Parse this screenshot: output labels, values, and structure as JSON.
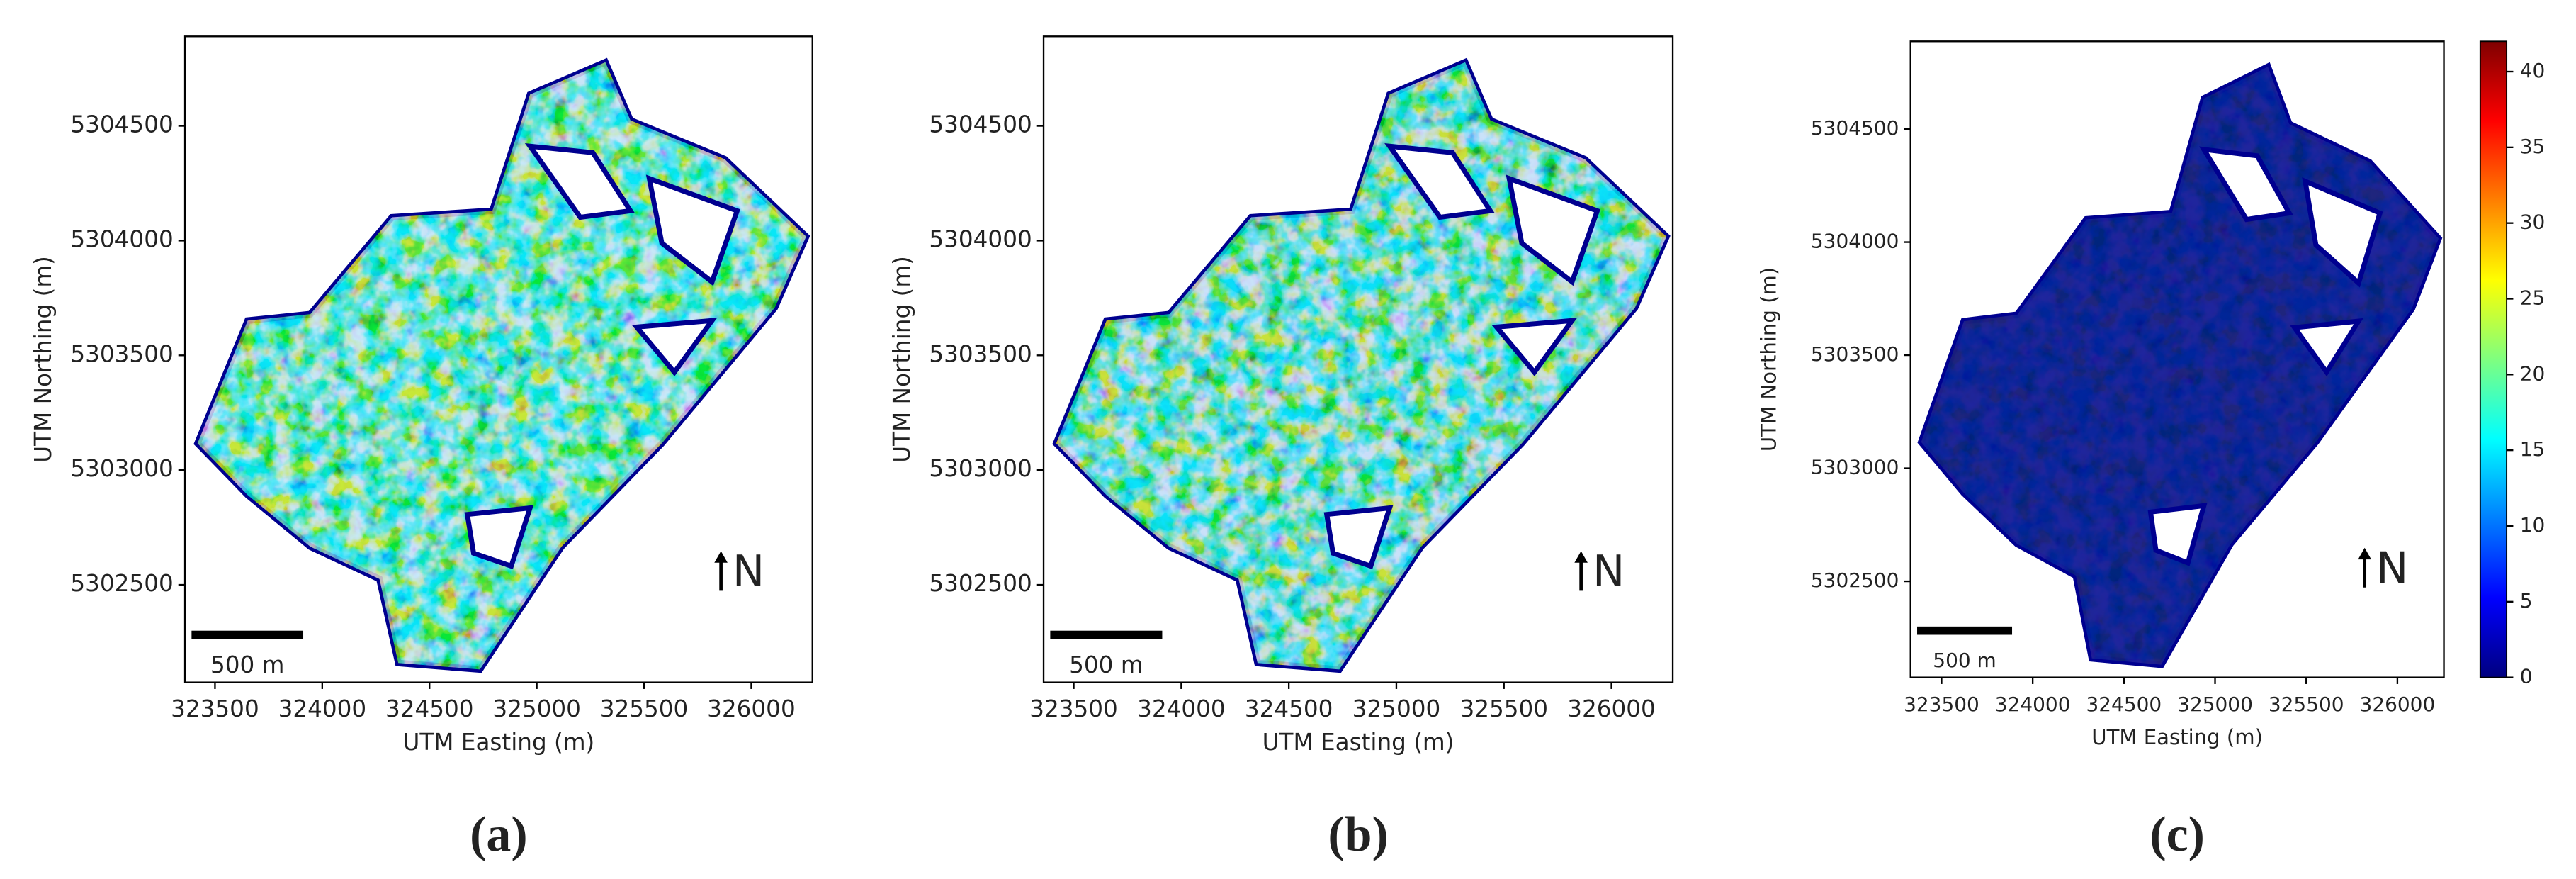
{
  "chart_data": [
    {
      "type": "map",
      "panel_label": "(a)",
      "xlabel": "UTM Easting (m)",
      "ylabel": "UTM Northing (m)",
      "xlim": [
        323360,
        326285
      ],
      "ylim": [
        5302075,
        5304890
      ],
      "xticks": [
        323500,
        324000,
        324500,
        325000,
        325500,
        326000
      ],
      "yticks": [
        5302500,
        5303000,
        5303500,
        5304000,
        5304500
      ],
      "scale_bar": "500 m",
      "north": "N",
      "color": "#20a8e0"
    },
    {
      "type": "map",
      "panel_label": "(b)",
      "xlabel": "UTM Easting (m)",
      "ylabel": "UTM Northing (m)",
      "xlim": [
        323360,
        326285
      ],
      "ylim": [
        5302075,
        5304890
      ],
      "xticks": [
        323500,
        324000,
        324500,
        325000,
        325500,
        326000
      ],
      "yticks": [
        5302500,
        5303000,
        5303500,
        5304000,
        5304500
      ],
      "scale_bar": "500 m",
      "north": "N",
      "color": "#2a90e8"
    },
    {
      "type": "map",
      "panel_label": "(c)",
      "xlabel": "UTM Easting (m)",
      "ylabel": "UTM Northing (m)",
      "xlim": [
        323330,
        326255
      ],
      "ylim": [
        5302075,
        5304888
      ],
      "xticks": [
        323500,
        324000,
        324500,
        325000,
        325500,
        326000
      ],
      "yticks": [
        5302500,
        5303000,
        5303500,
        5304000,
        5304500
      ],
      "scale_bar": "500 m",
      "north": "N",
      "color": "#00078f",
      "colorbar": {
        "colormap": "jet",
        "lim": [
          0,
          42
        ],
        "ticks": [
          0,
          5,
          10,
          15,
          20,
          25,
          30,
          35,
          40
        ]
      }
    }
  ]
}
